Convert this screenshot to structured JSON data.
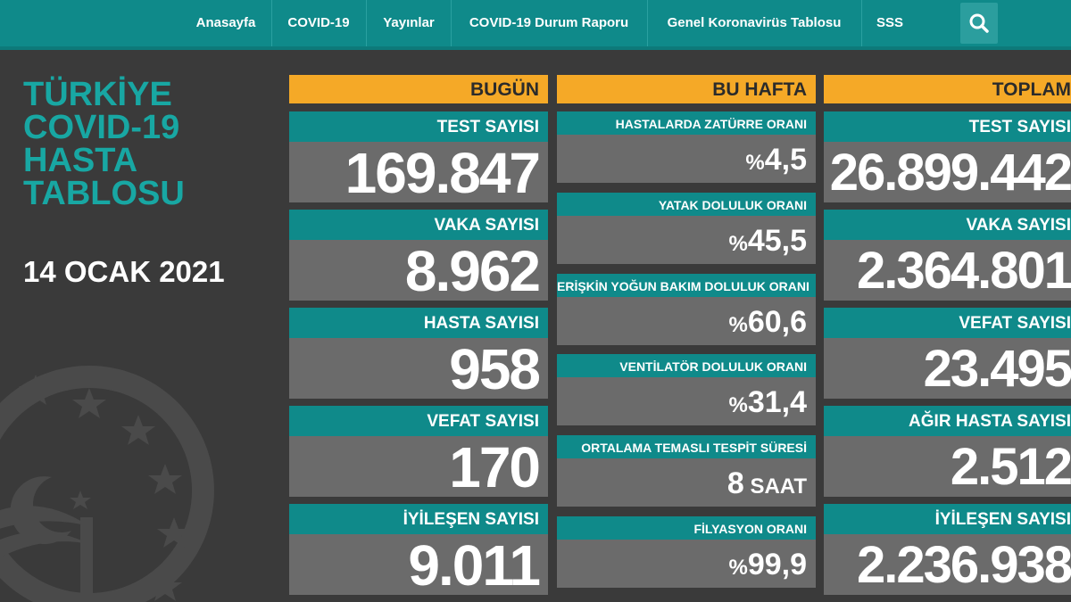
{
  "nav": {
    "items": [
      "Anasayfa",
      "COVID-19",
      "Yayınlar",
      "COVID-19 Durum Raporu",
      "Genel Koronavirüs Tablosu",
      "SSS"
    ]
  },
  "title": {
    "line1": "TÜRKİYE",
    "line2": "COVID-19",
    "line3": "HASTA",
    "line4": "TABLOSU"
  },
  "date": "14 OCAK 2021",
  "today": {
    "header": "BUGÜN",
    "cards": [
      {
        "label": "TEST SAYISI",
        "value": "169.847"
      },
      {
        "label": "VAKA SAYISI",
        "value": "8.962"
      },
      {
        "label": "HASTA SAYISI",
        "value": "958"
      },
      {
        "label": "VEFAT SAYISI",
        "value": "170"
      },
      {
        "label": "İYİLEŞEN SAYISI",
        "value": "9.011"
      }
    ]
  },
  "week": {
    "header": "BU HAFTA",
    "cards": [
      {
        "label": "HASTALARDA ZATÜRRE ORANI",
        "prefix": "%",
        "value": "4,5",
        "unit": ""
      },
      {
        "label": "YATAK DOLULUK ORANI",
        "prefix": "%",
        "value": "45,5",
        "unit": ""
      },
      {
        "label": "ERİŞKİN YOĞUN BAKIM DOLULUK ORANI",
        "prefix": "%",
        "value": "60,6",
        "unit": ""
      },
      {
        "label": "VENTİLATÖR DOLULUK ORANI",
        "prefix": "%",
        "value": "31,4",
        "unit": ""
      },
      {
        "label": "ORTALAMA TEMASLI TESPİT SÜRESİ",
        "prefix": "",
        "value": "8",
        "unit": " SAAT"
      },
      {
        "label": "FİLYASYON ORANI",
        "prefix": "%",
        "value": "99,9",
        "unit": ""
      }
    ]
  },
  "total": {
    "header": "TOPLAM",
    "cards": [
      {
        "label": "TEST SAYISI",
        "value": "26.899.442"
      },
      {
        "label": "VAKA SAYISI",
        "value": "2.364.801"
      },
      {
        "label": "VEFAT SAYISI",
        "value": "23.495"
      },
      {
        "label": "AĞIR HASTA SAYISI",
        "value": "2.512"
      },
      {
        "label": "İYİLEŞEN SAYISI",
        "value": "2.236.938"
      }
    ]
  },
  "colors": {
    "teal": "#0f8a8a",
    "title_teal": "#18a7a3",
    "orange": "#f5a927",
    "value_gray": "#6b6b6b",
    "background": "#3a3a3a"
  },
  "icons": [
    "search-icon",
    "ministry-emblem-icon"
  ]
}
